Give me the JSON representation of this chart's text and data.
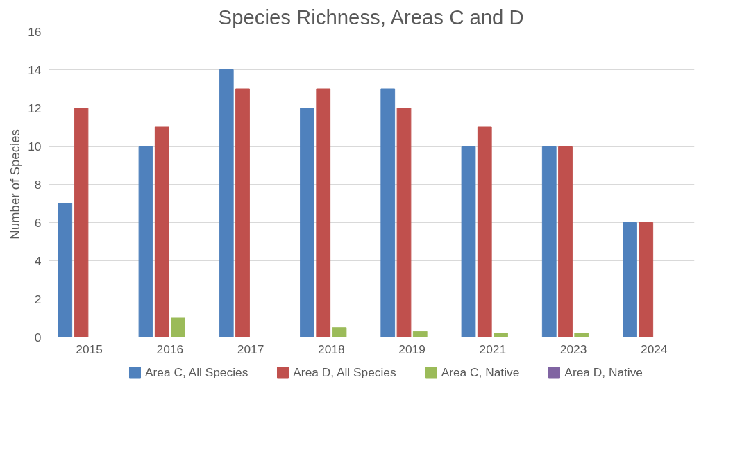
{
  "chart_data": {
    "type": "bar",
    "title": "Species Richness, Areas C and D",
    "ylabel": "Number of Species",
    "categories": [
      "2015",
      "2016",
      "2017",
      "2018",
      "2019",
      "2021",
      "2023",
      "2024"
    ],
    "series": [
      {
        "name": "Area C, All Species",
        "color": "#4f81bd",
        "values": [
          7,
          10,
          14,
          12,
          13,
          10,
          10,
          6
        ]
      },
      {
        "name": "Area D, All Species",
        "color": "#c0504d",
        "values": [
          12,
          11,
          13,
          13,
          12,
          11,
          10,
          6
        ]
      },
      {
        "name": "Area C, Native",
        "color": "#9bbb59",
        "values": [
          0,
          1,
          0,
          0.5,
          0.3,
          0.2,
          0.2,
          0
        ]
      },
      {
        "name": "Area D, Native",
        "color": "#8064a2",
        "values": [
          0,
          0,
          0,
          0,
          0,
          0,
          0,
          0
        ]
      }
    ],
    "ylim": [
      0,
      16
    ],
    "yticks": [
      0,
      2,
      4,
      6,
      8,
      10,
      12,
      14,
      16
    ],
    "grid": "y",
    "legend": "bottom"
  }
}
